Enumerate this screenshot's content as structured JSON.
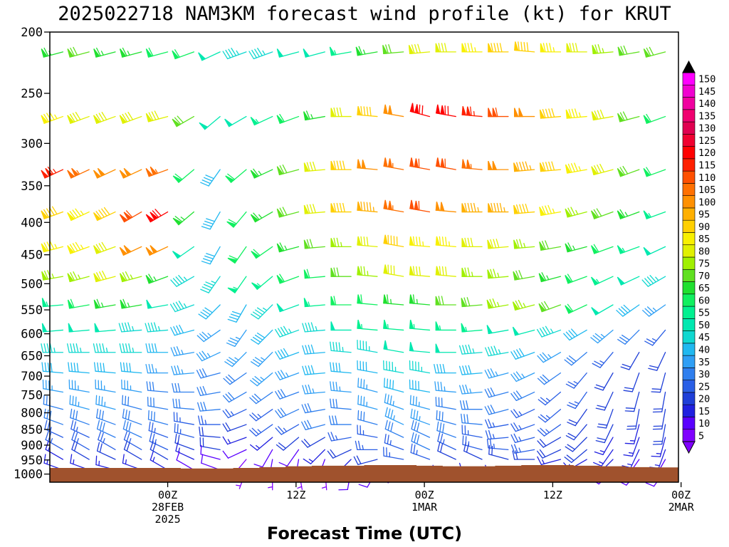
{
  "chart_data": {
    "type": "wind-barb time-height section",
    "title": "2025022718 NAM3KM forecast wind profile (kt) for KRUT",
    "xlabel": "Forecast Time (UTC)",
    "ylabel": "",
    "units": "kt",
    "y_axis": {
      "scale": "log",
      "inverted": true,
      "ylim": [
        1030,
        200
      ],
      "ticks": [
        200,
        250,
        300,
        350,
        400,
        450,
        500,
        550,
        600,
        650,
        700,
        750,
        800,
        850,
        900,
        950,
        1000
      ],
      "tick_labels": [
        "200",
        "250",
        "300",
        "350",
        "400",
        "450",
        "500",
        "550",
        "600",
        "650",
        "700",
        "750",
        "800",
        "850",
        "900",
        "950",
        "1000"
      ]
    },
    "x_axis": {
      "range_hours": [
        -9,
        39
      ],
      "ticks": [
        {
          "hour": 0,
          "lines": [
            "00Z",
            "28FEB",
            "2025"
          ]
        },
        {
          "hour": 9.8,
          "lines": [
            "12Z"
          ]
        },
        {
          "hour": 19.6,
          "lines": [
            "00Z",
            "1MAR"
          ]
        },
        {
          "hour": 29.4,
          "lines": [
            "12Z"
          ]
        },
        {
          "hour": 39.2,
          "lines": [
            "00Z",
            "2MAR"
          ]
        }
      ]
    },
    "colorbar": {
      "levels": [
        5,
        10,
        15,
        20,
        25,
        30,
        35,
        40,
        45,
        50,
        55,
        60,
        65,
        70,
        75,
        80,
        85,
        90,
        95,
        100,
        105,
        110,
        115,
        120,
        125,
        130,
        135,
        140,
        145,
        150
      ],
      "colors": [
        "#8000ff",
        "#5a00ff",
        "#2020e0",
        "#1f3fd8",
        "#2a5fe6",
        "#2f7fee",
        "#2f9ff5",
        "#20b8f0",
        "#10d8d0",
        "#00e8b0",
        "#00f090",
        "#10f060",
        "#20e030",
        "#60e020",
        "#a0f000",
        "#e0f000",
        "#f8f000",
        "#ffd000",
        "#ffb000",
        "#ff9000",
        "#ff7000",
        "#ff5000",
        "#ff2000",
        "#ff0000",
        "#f00030",
        "#e00050",
        "#f00070",
        "#f000a0",
        "#f000d0",
        "#ff00ff"
      ],
      "extend": "both"
    },
    "surface_color": "#a0522d",
    "levels_hpa": [
      215,
      272,
      330,
      385,
      437,
      487,
      540,
      592,
      642,
      692,
      742,
      790,
      835,
      875,
      915,
      948,
      985
    ],
    "times_hours": [
      -8,
      -6,
      -4,
      -2,
      0,
      2,
      4,
      6,
      8,
      10,
      12,
      14,
      16,
      18,
      20,
      22,
      24,
      26,
      28,
      30,
      32,
      34,
      36,
      38
    ],
    "wind_speed_kt": [
      [
        65,
        70,
        65,
        65,
        60,
        60,
        50,
        45,
        45,
        50,
        50,
        55,
        65,
        70,
        80,
        80,
        85,
        90,
        90,
        85,
        80,
        75,
        70,
        70
      ],
      [
        85,
        80,
        80,
        80,
        80,
        70,
        50,
        50,
        55,
        60,
        65,
        80,
        90,
        100,
        120,
        120,
        115,
        110,
        100,
        90,
        85,
        80,
        70,
        60
      ],
      [
        115,
        105,
        100,
        100,
        105,
        60,
        40,
        60,
        65,
        70,
        80,
        90,
        100,
        105,
        110,
        110,
        105,
        100,
        95,
        90,
        85,
        80,
        70,
        60
      ],
      [
        90,
        85,
        90,
        110,
        120,
        65,
        40,
        60,
        65,
        70,
        80,
        90,
        95,
        105,
        110,
        100,
        95,
        95,
        90,
        85,
        75,
        70,
        65,
        55
      ],
      [
        85,
        85,
        80,
        100,
        100,
        50,
        40,
        60,
        60,
        65,
        70,
        75,
        80,
        90,
        85,
        85,
        80,
        80,
        75,
        70,
        65,
        60,
        55,
        50
      ],
      [
        75,
        75,
        80,
        75,
        65,
        45,
        45,
        55,
        55,
        60,
        60,
        70,
        75,
        80,
        80,
        80,
        75,
        75,
        70,
        65,
        60,
        55,
        50,
        45
      ],
      [
        55,
        60,
        65,
        65,
        50,
        45,
        40,
        40,
        45,
        50,
        55,
        60,
        60,
        65,
        65,
        70,
        70,
        75,
        75,
        70,
        60,
        50,
        40,
        35
      ],
      [
        50,
        50,
        50,
        45,
        45,
        40,
        35,
        35,
        40,
        45,
        45,
        50,
        55,
        55,
        55,
        55,
        55,
        50,
        50,
        45,
        40,
        35,
        30,
        25
      ],
      [
        45,
        45,
        45,
        45,
        40,
        35,
        35,
        35,
        35,
        40,
        40,
        45,
        45,
        50,
        50,
        50,
        45,
        45,
        40,
        35,
        30,
        25,
        20,
        20
      ],
      [
        40,
        40,
        40,
        40,
        35,
        35,
        30,
        30,
        35,
        35,
        40,
        40,
        40,
        45,
        45,
        40,
        40,
        35,
        35,
        30,
        25,
        20,
        20,
        20
      ],
      [
        35,
        35,
        35,
        35,
        30,
        30,
        30,
        30,
        30,
        30,
        35,
        35,
        35,
        40,
        40,
        35,
        35,
        30,
        30,
        25,
        25,
        20,
        20,
        20
      ],
      [
        30,
        35,
        35,
        30,
        30,
        30,
        30,
        25,
        25,
        30,
        30,
        30,
        35,
        35,
        35,
        30,
        30,
        30,
        25,
        25,
        20,
        20,
        20,
        20
      ],
      [
        30,
        30,
        30,
        30,
        30,
        25,
        25,
        20,
        25,
        25,
        30,
        30,
        30,
        35,
        35,
        30,
        30,
        25,
        25,
        25,
        20,
        20,
        15,
        20
      ],
      [
        25,
        25,
        30,
        30,
        25,
        25,
        20,
        15,
        15,
        20,
        20,
        25,
        25,
        30,
        30,
        30,
        25,
        25,
        25,
        20,
        20,
        15,
        15,
        15
      ],
      [
        25,
        25,
        25,
        25,
        25,
        20,
        20,
        10,
        10,
        10,
        15,
        20,
        25,
        25,
        30,
        25,
        25,
        25,
        25,
        20,
        20,
        15,
        15,
        15
      ],
      [
        15,
        20,
        20,
        20,
        20,
        15,
        10,
        5,
        10,
        10,
        10,
        15,
        20,
        25,
        25,
        20,
        20,
        20,
        20,
        15,
        15,
        15,
        10,
        10
      ],
      [
        15,
        15,
        15,
        15,
        15,
        10,
        10,
        5,
        5,
        5,
        5,
        10,
        10,
        10,
        15,
        15,
        15,
        15,
        10,
        10,
        10,
        10,
        10,
        10
      ]
    ],
    "wind_dir_deg": [
      [
        255,
        255,
        255,
        255,
        255,
        250,
        245,
        250,
        250,
        255,
        255,
        260,
        260,
        265,
        265,
        270,
        270,
        270,
        275,
        270,
        270,
        265,
        260,
        255
      ],
      [
        250,
        250,
        250,
        250,
        255,
        240,
        230,
        240,
        245,
        250,
        260,
        270,
        275,
        280,
        285,
        280,
        275,
        270,
        270,
        265,
        265,
        260,
        255,
        250
      ],
      [
        245,
        245,
        245,
        245,
        250,
        230,
        215,
        230,
        245,
        255,
        265,
        270,
        275,
        280,
        280,
        280,
        275,
        270,
        265,
        265,
        260,
        255,
        250,
        250
      ],
      [
        250,
        245,
        245,
        240,
        240,
        230,
        210,
        220,
        240,
        255,
        265,
        270,
        275,
        280,
        280,
        275,
        270,
        270,
        265,
        260,
        255,
        250,
        250,
        250
      ],
      [
        255,
        250,
        250,
        245,
        245,
        235,
        210,
        215,
        235,
        255,
        265,
        270,
        275,
        280,
        275,
        275,
        270,
        265,
        265,
        260,
        255,
        250,
        250,
        245
      ],
      [
        260,
        255,
        255,
        255,
        250,
        240,
        215,
        215,
        230,
        250,
        265,
        270,
        275,
        280,
        275,
        275,
        270,
        265,
        260,
        255,
        250,
        245,
        245,
        240
      ],
      [
        265,
        260,
        260,
        260,
        260,
        250,
        225,
        210,
        225,
        250,
        265,
        270,
        275,
        275,
        275,
        270,
        265,
        260,
        255,
        250,
        245,
        240,
        235,
        235
      ],
      [
        265,
        265,
        265,
        265,
        265,
        255,
        235,
        215,
        225,
        250,
        265,
        270,
        275,
        275,
        275,
        270,
        265,
        260,
        255,
        250,
        240,
        230,
        225,
        220
      ],
      [
        270,
        270,
        270,
        270,
        270,
        260,
        245,
        225,
        225,
        250,
        265,
        275,
        280,
        280,
        275,
        270,
        265,
        260,
        250,
        240,
        230,
        220,
        210,
        205
      ],
      [
        275,
        275,
        275,
        275,
        270,
        265,
        255,
        235,
        230,
        250,
        265,
        275,
        280,
        280,
        280,
        270,
        265,
        255,
        245,
        235,
        220,
        210,
        200,
        195
      ],
      [
        280,
        280,
        280,
        280,
        275,
        270,
        260,
        240,
        235,
        250,
        265,
        275,
        285,
        285,
        280,
        275,
        265,
        255,
        245,
        230,
        215,
        205,
        195,
        190
      ],
      [
        285,
        285,
        285,
        285,
        280,
        275,
        265,
        245,
        235,
        245,
        260,
        275,
        285,
        290,
        285,
        280,
        270,
        255,
        245,
        230,
        215,
        200,
        190,
        190
      ],
      [
        290,
        290,
        290,
        290,
        285,
        280,
        270,
        250,
        235,
        240,
        255,
        270,
        285,
        295,
        290,
        285,
        275,
        260,
        250,
        235,
        220,
        205,
        195,
        190
      ],
      [
        295,
        295,
        295,
        295,
        290,
        285,
        275,
        250,
        230,
        230,
        240,
        260,
        280,
        295,
        295,
        290,
        280,
        265,
        255,
        240,
        225,
        210,
        200,
        195
      ],
      [
        300,
        300,
        300,
        300,
        295,
        290,
        280,
        245,
        210,
        215,
        225,
        245,
        270,
        290,
        295,
        295,
        285,
        275,
        260,
        245,
        230,
        215,
        205,
        200
      ],
      [
        300,
        300,
        295,
        300,
        300,
        295,
        285,
        220,
        190,
        190,
        200,
        225,
        255,
        280,
        290,
        295,
        295,
        285,
        270,
        255,
        240,
        225,
        215,
        210
      ],
      [
        290,
        290,
        285,
        290,
        300,
        300,
        290,
        200,
        180,
        170,
        175,
        190,
        210,
        230,
        250,
        260,
        265,
        260,
        255,
        245,
        235,
        225,
        220,
        215
      ]
    ],
    "surface_pressure_hpa": [
      978,
      978,
      978,
      978,
      978,
      980,
      980,
      978,
      975,
      972,
      970,
      970,
      968,
      968,
      970,
      972,
      972,
      970,
      968,
      968,
      970,
      972,
      975,
      976
    ]
  }
}
